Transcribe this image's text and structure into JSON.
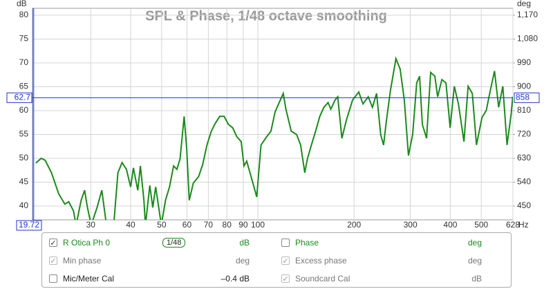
{
  "chart_data": {
    "type": "line",
    "title": "SPL & Phase, 1/48 octave smoothing",
    "y_label": "dB",
    "y2_label": "deg",
    "x_unit": "Hz",
    "log_x": true,
    "grid": true,
    "xlim": [
      19.72,
      628
    ],
    "ylim": [
      37.1,
      81.45
    ],
    "y2lim": [
      397.8,
      1196
    ],
    "xticks": [
      30,
      40,
      50,
      60,
      70,
      80,
      90,
      100,
      200,
      300,
      400,
      500,
      628
    ],
    "yticks": [
      40,
      45,
      50,
      55,
      60,
      65,
      70,
      75,
      80
    ],
    "y2ticks": [
      450,
      540,
      630,
      720,
      810,
      900,
      990,
      {
        "value": 1080,
        "label": "1,080"
      },
      {
        "value": 1170,
        "label": "1,170"
      }
    ],
    "cursor": {
      "x": 19.72,
      "y": 62.7,
      "y2": 858,
      "color": "#2233cc"
    },
    "series": [
      {
        "name": "R Otica Ph 0",
        "color": "#1a8a1a",
        "x": [
          20.2,
          21.0,
          21.6,
          22.6,
          23.8,
          24.9,
          25.6,
          26.5,
          27.0,
          28.0,
          28.7,
          29.3,
          30.1,
          31.4,
          32.5,
          33.6,
          35.4,
          36.5,
          37.6,
          38.8,
          40.0,
          40.8,
          42.1,
          42.9,
          44.0,
          44.5,
          45.9,
          46.9,
          47.9,
          49.9,
          51.4,
          52.9,
          54.5,
          55.8,
          57.1,
          58.8,
          59.9,
          61.0,
          62.8,
          65.3,
          67.2,
          69.3,
          71.5,
          73.7,
          76.0,
          78.4,
          80.9,
          83.4,
          86.0,
          88.7,
          90.5,
          92.3,
          95.2,
          99.2,
          102.3,
          106.5,
          109.9,
          113.2,
          116.6,
          120.1,
          122.4,
          127.2,
          132.2,
          136.1,
          140.2,
          142.9,
          147.1,
          151.6,
          156.2,
          160.9,
          165.8,
          169.2,
          174.3,
          177.8,
          183.2,
          188.8,
          197.8,
          206.9,
          213.2,
          221.5,
          228.3,
          235.2,
          242.3,
          247.3,
          252.3,
          260.0,
          270.4,
          278.7,
          287.2,
          295.9,
          305,
          314,
          320.6,
          327.1,
          337.1,
          347.3,
          357.9,
          365.2,
          376.3,
          387.8,
          399.5,
          411.7,
          424.2,
          441.5,
          454.9,
          468.8,
          483.1,
          502.8,
          518.1,
          533.9,
          550.1,
          566.9,
          584.1,
          601.9,
          620.3,
          627
        ],
        "values": [
          49.0,
          50,
          49.6,
          47,
          42.6,
          40.4,
          40.9,
          39,
          36,
          41.2,
          43.3,
          39.7,
          36,
          39.7,
          43.3,
          36,
          36,
          47,
          49.1,
          47.7,
          44,
          48,
          43.3,
          48.4,
          41.2,
          36,
          44.3,
          39.7,
          44,
          36,
          41.2,
          44,
          48.4,
          47.7,
          49.9,
          58.8,
          52,
          41.2,
          44.8,
          46.2,
          48.7,
          52.8,
          55.7,
          57.4,
          58.8,
          58.8,
          57.1,
          56.4,
          54.5,
          53.5,
          48.4,
          49.4,
          46.2,
          41.9,
          52.8,
          54.5,
          55.7,
          59.7,
          61.7,
          63.6,
          60.3,
          55.7,
          55,
          52.8,
          47,
          49.9,
          52.8,
          55.7,
          58.8,
          60.7,
          61.7,
          60.3,
          62.2,
          62.9,
          54.2,
          57.8,
          62.2,
          63.9,
          61.4,
          62.9,
          60.7,
          63.6,
          54.9,
          52.8,
          57.8,
          64.3,
          70.9,
          68.7,
          62.2,
          50.6,
          55,
          65.8,
          67.2,
          57.1,
          54.2,
          68,
          67.2,
          62.9,
          66.5,
          65.8,
          56.4,
          65.1,
          61.4,
          53.5,
          65.1,
          63.6,
          52.8,
          58.6,
          60,
          64.3,
          68.3,
          60.7,
          65.1,
          52.8,
          59.3,
          62.9
        ]
      }
    ]
  },
  "panel": {
    "rows": [
      [
        {
          "checked": true,
          "enabled": true,
          "label": "R Otica Ph 0",
          "color": "#1a8a1a",
          "smoothing": "1/48",
          "unit": "dB"
        },
        {
          "checked": false,
          "enabled": true,
          "label": "Phase",
          "color": "#1a8a1a",
          "unit": "deg"
        }
      ],
      [
        {
          "checked": true,
          "enabled": false,
          "label": "Min phase",
          "color": "#777777",
          "unit": "deg"
        },
        {
          "checked": true,
          "enabled": false,
          "label": "Excess phase",
          "color": "#777777",
          "unit": "deg"
        }
      ],
      [
        {
          "checked": false,
          "enabled": true,
          "label": "Mic/Meter Cal",
          "color": "#222222",
          "unit": "–0.4 dB"
        },
        {
          "checked": true,
          "enabled": false,
          "label": "Soundcard Cal",
          "color": "#777777",
          "unit": "dB"
        }
      ]
    ]
  }
}
